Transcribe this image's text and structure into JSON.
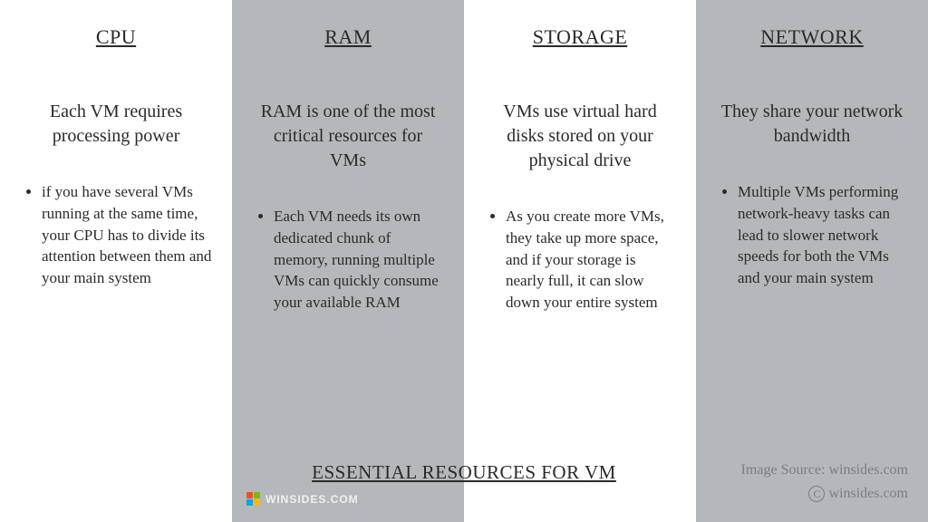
{
  "columns": [
    {
      "title": "CPU",
      "subtitle": "Each VM requires processing power",
      "bullet": "if you have several VMs running at the same time, your CPU has to divide its attention between them and your main system",
      "bg": "white"
    },
    {
      "title": "RAM",
      "subtitle": "RAM is one of the most critical resources for VMs",
      "bullet": "Each VM needs its own dedicated chunk of memory, running multiple VMs can quickly consume your available RAM",
      "bg": "grey"
    },
    {
      "title": "STORAGE",
      "subtitle": "VMs use virtual hard disks stored on your physical drive",
      "bullet": "As you create more VMs, they take up more space, and if your storage is nearly full, it can slow down your entire system",
      "bg": "white"
    },
    {
      "title": "NETWORK",
      "subtitle": "They share your network bandwidth",
      "bullet": "Multiple VMs performing network-heavy tasks can lead to slower network speeds for both the VMs and your main system",
      "bg": "grey"
    }
  ],
  "footer_title": "ESSENTIAL RESOURCES FOR VM",
  "source_text": "Image Source: winsides.com",
  "copyright_text": "winsides.com",
  "logo_text": "WINSIDES.COM",
  "logo_colors": [
    "#f25022",
    "#7fba00",
    "#00a4ef",
    "#ffb900"
  ],
  "colors": {
    "white_bg": "#ffffff",
    "grey_bg": "#b5b8bb",
    "text": "#2a2a2a",
    "muted": "#7b7e81"
  }
}
